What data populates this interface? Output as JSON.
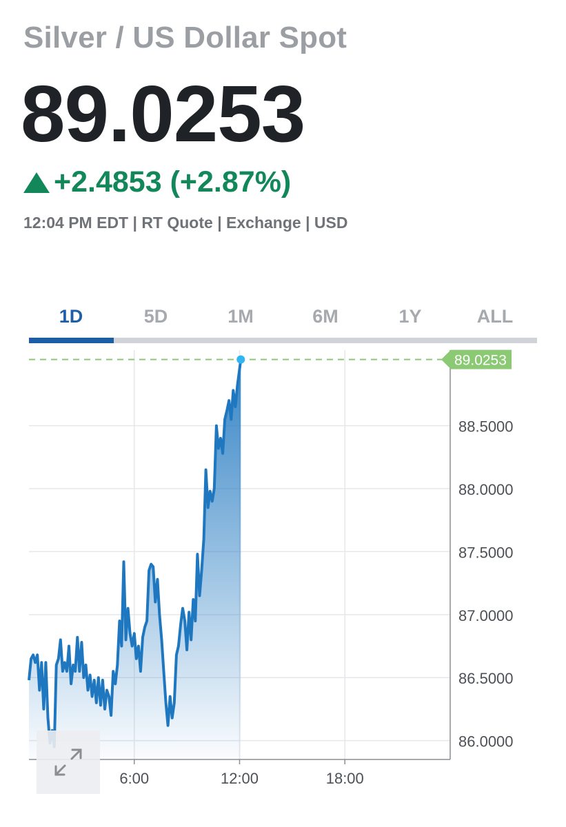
{
  "header": {
    "title": "Silver / US Dollar Spot",
    "price": "89.0253",
    "change": "+2.4853 (+2.87%)",
    "meta": "12:04 PM EDT | RT Quote | Exchange | USD"
  },
  "tabs": [
    "1D",
    "5D",
    "1M",
    "6M",
    "1Y",
    "ALL"
  ],
  "active_tab": "1D",
  "colors": {
    "up": "#12875a",
    "line": "#1f77c0",
    "tab_active": "#1b5ea6",
    "last_label": "#8cc975"
  },
  "icons": {
    "change_direction": "triangle-up-icon",
    "expand": "expand-arrows-icon"
  },
  "chart_data": {
    "type": "line",
    "x_unit": "hours",
    "xlim": [
      0,
      24
    ],
    "ylim": [
      85.85,
      89.1
    ],
    "yticks": [
      86.0,
      86.5,
      87.0,
      87.5,
      88.0,
      88.5
    ],
    "ytick_labels": [
      "86.0000",
      "86.5000",
      "87.0000",
      "87.5000",
      "88.0000",
      "88.5000"
    ],
    "xticks": [
      6,
      12,
      18
    ],
    "xtick_labels": [
      "6:00",
      "12:00",
      "18:00"
    ],
    "last_price": 89.0253,
    "last_price_label": "89.0253",
    "grid": true,
    "series": [
      {
        "x": [
          0.0,
          0.12,
          0.24,
          0.36,
          0.48,
          0.6,
          0.72,
          0.84,
          0.96,
          1.08,
          1.2,
          1.32,
          1.44,
          1.56,
          1.68,
          1.8,
          1.92,
          2.04,
          2.16,
          2.28,
          2.4,
          2.52,
          2.64,
          2.76,
          2.88,
          3.0,
          3.12,
          3.24,
          3.36,
          3.48,
          3.6,
          3.72,
          3.84,
          3.96,
          4.08,
          4.2,
          4.32,
          4.44,
          4.56,
          4.68,
          4.8,
          4.92,
          5.04,
          5.16,
          5.28,
          5.4,
          5.52,
          5.64,
          5.76,
          5.88,
          6.0,
          6.12,
          6.24,
          6.36,
          6.48,
          6.6,
          6.72,
          6.84,
          6.96,
          7.08,
          7.2,
          7.32,
          7.44,
          7.56,
          7.68,
          7.8,
          7.92,
          8.04,
          8.16,
          8.28,
          8.4,
          8.52,
          8.64,
          8.76,
          8.88,
          9.0,
          9.12,
          9.24,
          9.36,
          9.48,
          9.6,
          9.72,
          9.84,
          9.96,
          10.08,
          10.2,
          10.32,
          10.44,
          10.56,
          10.68,
          10.8,
          10.92,
          11.04,
          11.16,
          11.28,
          11.4,
          11.52,
          11.64,
          11.76,
          11.88,
          12.07
        ],
        "y": [
          86.48,
          86.65,
          86.68,
          86.62,
          86.68,
          86.4,
          86.62,
          86.25,
          86.62,
          86.18,
          85.98,
          86.08,
          85.95,
          86.6,
          86.65,
          86.8,
          86.55,
          86.62,
          86.55,
          86.75,
          86.45,
          86.6,
          86.55,
          86.82,
          86.55,
          86.78,
          86.5,
          86.6,
          86.4,
          86.52,
          86.35,
          86.48,
          86.3,
          86.5,
          86.28,
          86.48,
          86.25,
          86.4,
          86.35,
          86.2,
          86.55,
          86.45,
          86.6,
          86.95,
          86.75,
          87.42,
          86.8,
          87.05,
          86.85,
          86.75,
          86.85,
          86.65,
          86.75,
          86.55,
          86.82,
          86.9,
          86.95,
          87.35,
          87.4,
          87.38,
          87.1,
          87.28,
          87.0,
          86.8,
          86.55,
          86.3,
          86.12,
          86.35,
          86.18,
          86.3,
          86.68,
          86.75,
          86.92,
          87.05,
          86.95,
          86.72,
          87.02,
          86.8,
          87.12,
          86.95,
          87.48,
          87.15,
          87.35,
          87.6,
          88.15,
          87.85,
          87.98,
          87.9,
          88.0,
          88.5,
          88.32,
          88.4,
          88.28,
          88.55,
          88.62,
          88.7,
          88.55,
          88.78,
          88.65,
          88.82,
          89.0253
        ]
      }
    ]
  }
}
